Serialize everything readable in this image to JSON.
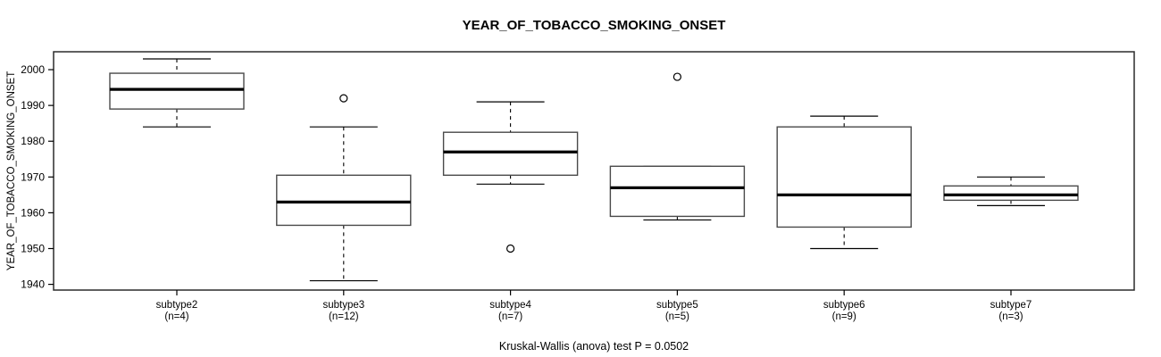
{
  "chart_data": {
    "type": "boxplot",
    "title": "YEAR_OF_TOBACCO_SMOKING_ONSET",
    "ylabel": "YEAR_OF_TOBACCO_SMOKING_ONSET",
    "xlabel": "",
    "annotation": "Kruskal-Wallis (anova) test P = 0.0502",
    "grid": false,
    "legend": "none",
    "y_ticks": [
      1940,
      1950,
      1960,
      1970,
      1980,
      1990,
      2000
    ],
    "y_range": [
      1938.4,
      2005.0
    ],
    "groups": [
      {
        "label": "subtype2",
        "n_label": "(n=4)",
        "n": 4,
        "whisker_low": 1984,
        "q1": 1989,
        "median": 1994.5,
        "q3": 1999,
        "whisker_high": 2003,
        "outliers": []
      },
      {
        "label": "subtype3",
        "n_label": "(n=12)",
        "n": 12,
        "whisker_low": 1941,
        "q1": 1956.5,
        "median": 1963,
        "q3": 1970.5,
        "whisker_high": 1984,
        "outliers": [
          1992
        ]
      },
      {
        "label": "subtype4",
        "n_label": "(n=7)",
        "n": 7,
        "whisker_low": 1968,
        "q1": 1970.5,
        "median": 1977,
        "q3": 1982.5,
        "whisker_high": 1991,
        "outliers": [
          1950
        ]
      },
      {
        "label": "subtype5",
        "n_label": "(n=5)",
        "n": 5,
        "whisker_low": 1958,
        "q1": 1959,
        "median": 1967,
        "q3": 1973,
        "whisker_high": 1973,
        "outliers": [
          1998
        ]
      },
      {
        "label": "subtype6",
        "n_label": "(n=9)",
        "n": 9,
        "whisker_low": 1950,
        "q1": 1956,
        "median": 1965,
        "q3": 1984,
        "whisker_high": 1987,
        "outliers": []
      },
      {
        "label": "subtype7",
        "n_label": "(n=3)",
        "n": 3,
        "whisker_low": 1962,
        "q1": 1963.5,
        "median": 1965,
        "q3": 1967.5,
        "whisker_high": 1970,
        "outliers": []
      }
    ],
    "colors": {
      "background": "#ffffff",
      "box_fill": "#ffffff",
      "line": "#000000",
      "frame": "#2b2b2b"
    }
  }
}
